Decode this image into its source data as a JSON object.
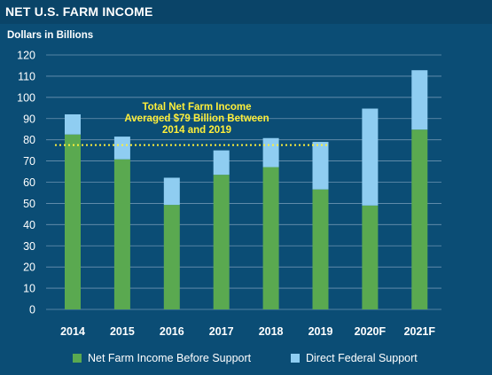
{
  "chart_data": {
    "type": "bar",
    "stacked": true,
    "title": "NET U.S. FARM INCOME",
    "ylabel": "Dollars in Billions",
    "categories": [
      "2014",
      "2015",
      "2016",
      "2017",
      "2018",
      "2019",
      "2020F",
      "2021F"
    ],
    "series": [
      {
        "name": "Net Farm Income Before Support",
        "color": "#5aa950",
        "values": [
          82.5,
          70.8,
          49.3,
          63.5,
          67.1,
          56.6,
          49.0,
          84.8
        ]
      },
      {
        "name": "Direct Federal Support",
        "color": "#8fcdf1",
        "values": [
          9.5,
          10.7,
          12.8,
          11.5,
          13.7,
          22.4,
          45.7,
          28.0
        ]
      }
    ],
    "ylim": [
      0,
      120
    ],
    "yticks": [
      0,
      10,
      20,
      30,
      40,
      50,
      60,
      70,
      80,
      90,
      100,
      110,
      120
    ],
    "grid": true,
    "reference_line": {
      "value": 77.5,
      "color": "#ffef3a",
      "style": "dotted"
    },
    "annotation": "Total Net Farm Income\nAveraged $79 Billion Between\n2014 and 2019",
    "legend_position": "bottom"
  }
}
